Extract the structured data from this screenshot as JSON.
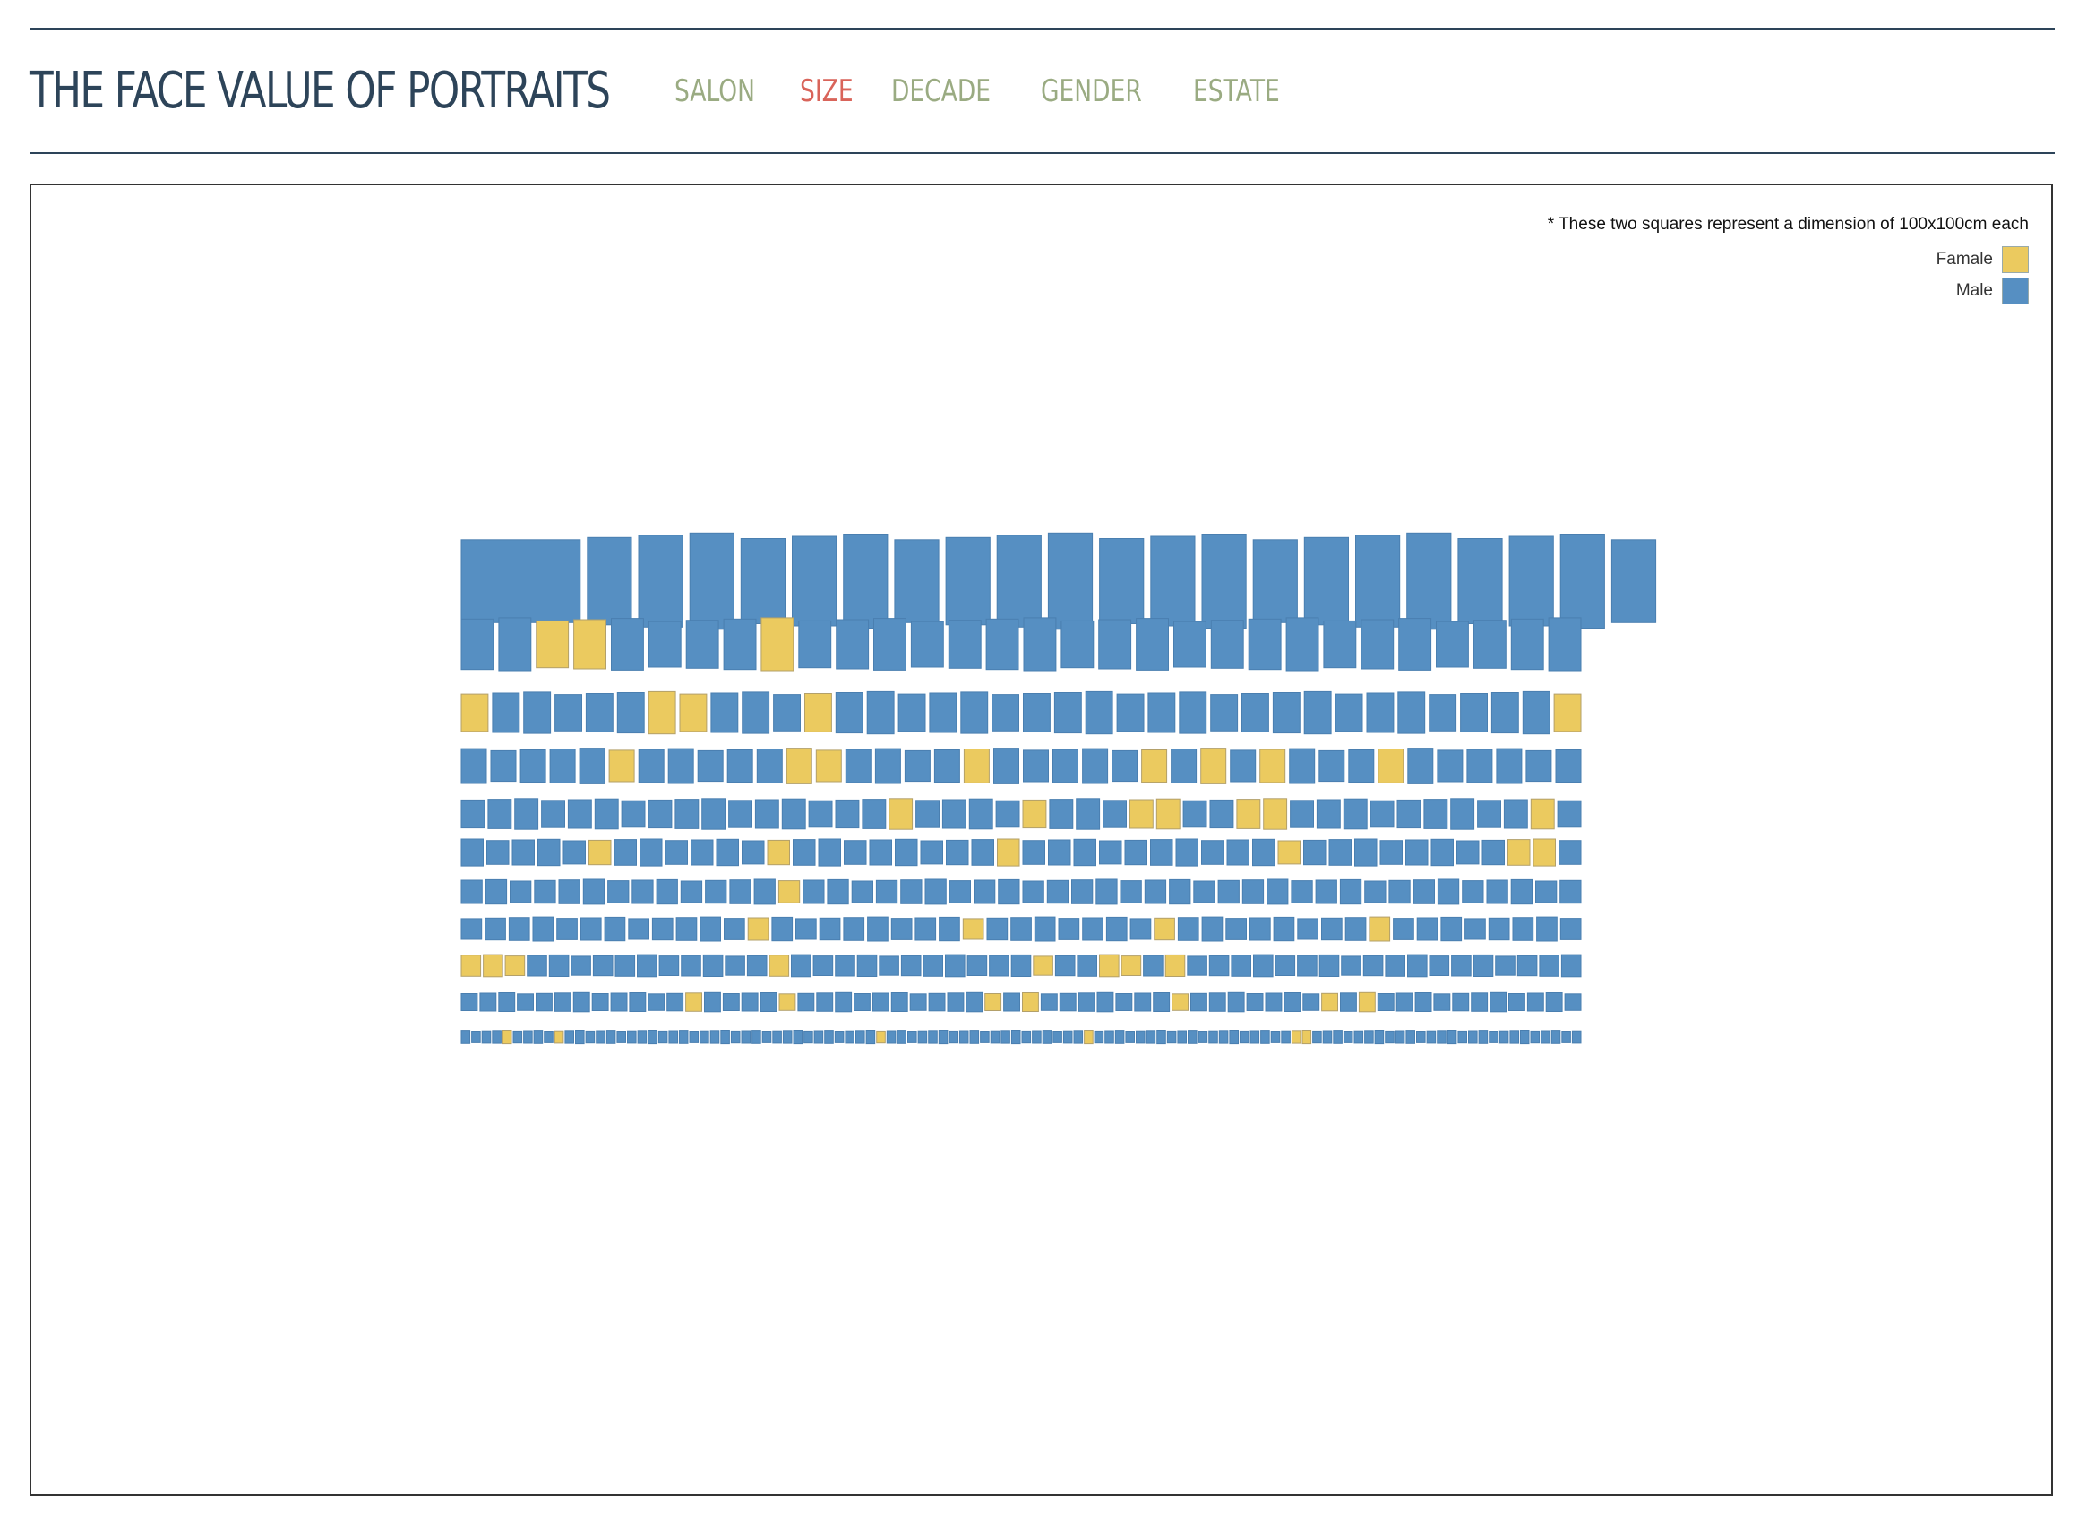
{
  "header": {
    "title": "THE FACE VALUE OF PORTRAITS",
    "nav": [
      {
        "label": "SALON",
        "active": false
      },
      {
        "label": "SIZE",
        "active": true
      },
      {
        "label": "DECADE",
        "active": false
      },
      {
        "label": "GENDER",
        "active": false
      },
      {
        "label": "ESTATE",
        "active": false
      }
    ]
  },
  "legend": {
    "note": "* These two squares represent a dimension of 100x100cm each",
    "female_label": "Famale",
    "male_label": "Male"
  },
  "colors": {
    "female": "#ebca5f",
    "male": "#568fc2",
    "accent": "#d9645a",
    "nav": "#9aab82",
    "title": "#2d4459"
  },
  "chart_data": {
    "type": "table",
    "encoding": "each square is one portrait; size proportional to canvas dimensions; rows ordered from largest to smallest",
    "rows": [
      {
        "pattern": "MMMMMMMMMMMMMMMMMMMMMM"
      },
      {
        "pattern": "MMFFMMMMFMMMMMMMMMMMMMMMMMMMMM"
      },
      {
        "pattern": "FMMMMMFFMMMFMMMMMMMMMMMMMMMMMMMMMMMF"
      },
      {
        "pattern": "MMMMMFMMMMMFFMMMMFMMMMMFMFMFMMMFMMMMMM"
      },
      {
        "pattern": "MMMMMMMMMMMMMMMMFMMMMFMMMFFMMFFMMMMMMMMMFM"
      },
      {
        "pattern": "MMMMMFMMMMMMFMMMMMMMMFMMMMMMMMMMFMMMMMMMMFFM"
      },
      {
        "pattern": "MMMMMMMMMMMMMFMMMMMMMMMMMMMMMMMMMMMMMMMMMMMMMM"
      },
      {
        "pattern": "MMMMMMMMMMMMFMMMMMMMMFMMMMMMMFMMMMMMMMFMMMMMMMM"
      },
      {
        "pattern": "FFFMMMMMMMMMMMFMMMMMMMMMMMFMMFFMFMMMMMMMMMMMMMMMMMM"
      },
      {
        "pattern": "MMMMMMMMMMMMFMMMMFMMMMMMMMMMFMFMMMMMMMFMMMMMMMFMFMMMMMMMMMMM"
      },
      {
        "pattern": "MMMMFMMMMFMMMMMMMMMMMMMMMMMMMMMMMMMMMMMMFMMMMMMMMMMMMMMMMMMMFMMMMMMMMMMMMMMMMMMMFFMMMMMMMMMMMMMMMMMMMMMMMMMM"
      }
    ]
  }
}
